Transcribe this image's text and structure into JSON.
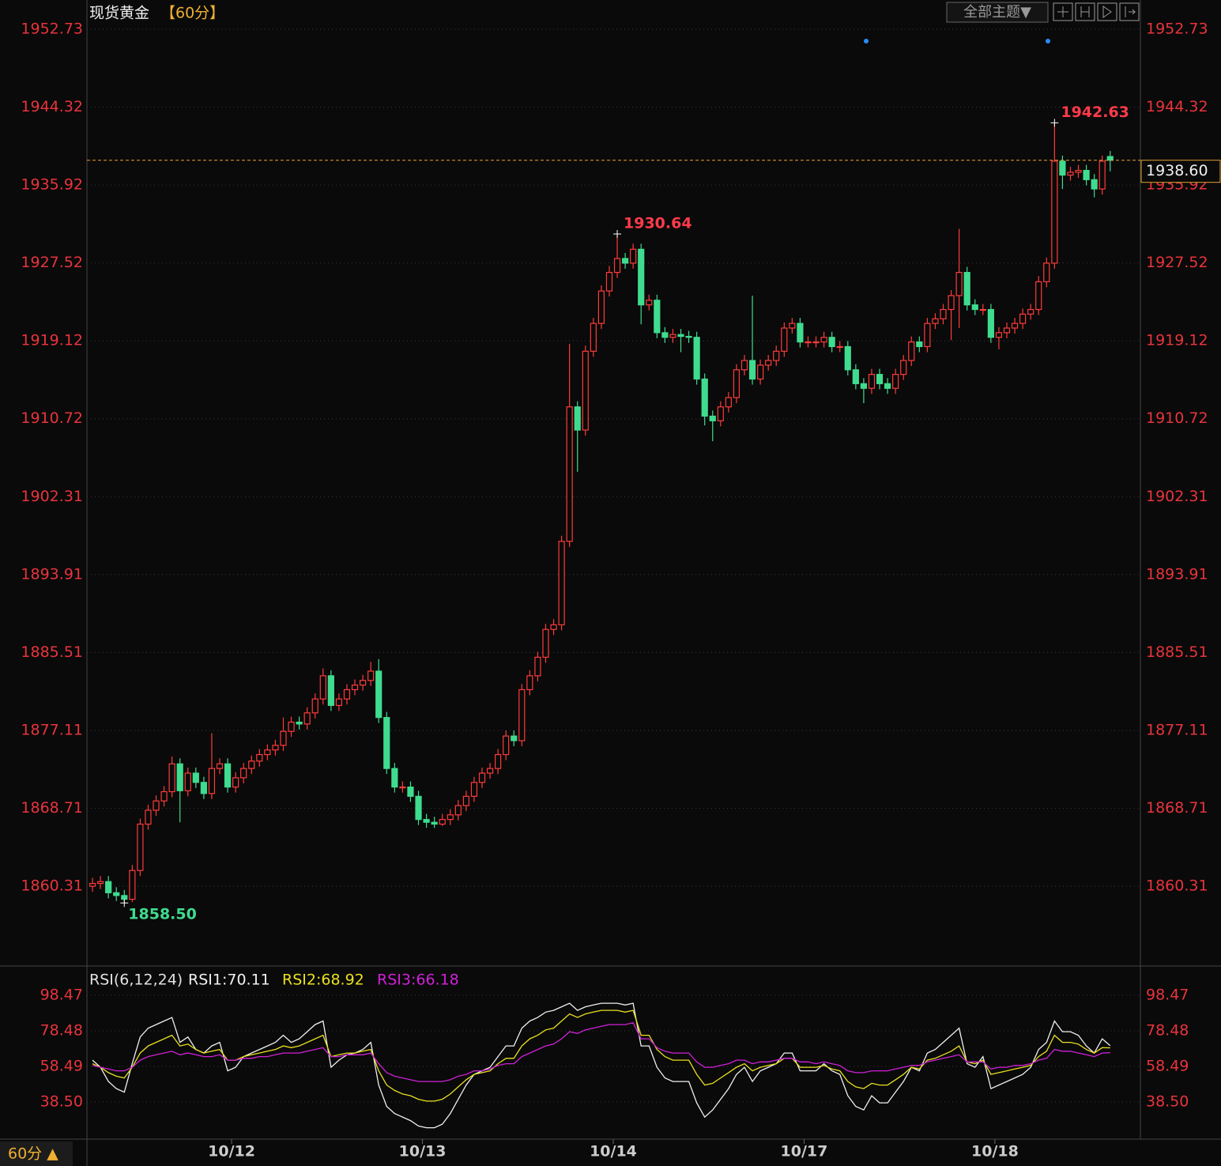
{
  "chart_data": [
    {
      "type": "candlestick",
      "title": "现货黄金",
      "period": "【60分】",
      "up_color": "#ff3b3b",
      "down_color": "#3fdc8f",
      "xlim": [
        -0.7,
        131.8
      ],
      "ylim": [
        1851.87,
        1955.88
      ],
      "yticks": [
        1952.73,
        1944.32,
        1935.92,
        1927.52,
        1919.12,
        1910.72,
        1902.31,
        1893.91,
        1885.51,
        1877.11,
        1868.71,
        1860.31
      ],
      "grid": true,
      "open": [
        1860.3,
        1860.6,
        1860.8,
        1859.6,
        1859.3,
        1858.9,
        1862.0,
        1867.0,
        1868.5,
        1869.5,
        1870.5,
        1873.5,
        1870.6,
        1872.5,
        1871.5,
        1870.3,
        1873.0,
        1873.5,
        1871.0,
        1872.0,
        1873.0,
        1873.8,
        1874.5,
        1875.0,
        1875.5,
        1877.0,
        1878.0,
        1877.8,
        1879.0,
        1880.5,
        1883.0,
        1879.8,
        1880.5,
        1881.5,
        1882.0,
        1882.5,
        1883.5,
        1878.5,
        1873.0,
        1871.0,
        1871.0,
        1870.0,
        1867.5,
        1867.2,
        1867.0,
        1867.5,
        1868.0,
        1869.0,
        1870.0,
        1871.5,
        1872.5,
        1873.0,
        1874.5,
        1876.5,
        1876.0,
        1881.5,
        1883.0,
        1885.0,
        1888.0,
        1888.5,
        1897.5,
        1912.0,
        1909.5,
        1918.0,
        1921.0,
        1924.5,
        1926.5,
        1928.0,
        1927.5,
        1929.0,
        1923.0,
        1923.5,
        1920.0,
        1919.5,
        1919.8,
        1919.6,
        1919.5,
        1915.0,
        1911.0,
        1910.5,
        1912.0,
        1913.0,
        1916.0,
        1917.0,
        1915.0,
        1916.5,
        1917.0,
        1918.0,
        1920.5,
        1921.0,
        1919.0,
        1919.0,
        1919.0,
        1919.5,
        1918.5,
        1918.5,
        1916.0,
        1914.5,
        1914.0,
        1915.5,
        1914.5,
        1914.0,
        1915.5,
        1917.0,
        1919.0,
        1918.5,
        1921.0,
        1921.5,
        1922.5,
        1924.0,
        1926.5,
        1923.0,
        1922.5,
        1922.5,
        1919.5,
        1920.0,
        1920.5,
        1921.0,
        1922.0,
        1922.5,
        1925.5,
        1927.5,
        1938.5,
        1937.0,
        1937.3,
        1937.5,
        1936.5,
        1935.5,
        1939.0
      ],
      "high": [
        1861.2,
        1861.4,
        1861.4,
        1860.2,
        1859.9,
        1862.6,
        1867.6,
        1869.1,
        1870.1,
        1871.1,
        1874.3,
        1874.1,
        1873.1,
        1873.1,
        1872.1,
        1876.8,
        1874.1,
        1874.1,
        1872.6,
        1873.6,
        1874.4,
        1875.1,
        1875.6,
        1876.1,
        1878.5,
        1878.6,
        1878.6,
        1879.6,
        1881.1,
        1883.8,
        1883.6,
        1881.1,
        1882.1,
        1882.6,
        1883.1,
        1884.5,
        1884.8,
        1879.1,
        1873.6,
        1871.6,
        1871.6,
        1870.6,
        1868.1,
        1867.8,
        1868.1,
        1868.6,
        1869.6,
        1870.6,
        1872.1,
        1873.1,
        1873.6,
        1875.1,
        1877.1,
        1877.1,
        1882.1,
        1883.6,
        1885.6,
        1888.6,
        1889.1,
        1898.1,
        1918.8,
        1912.6,
        1918.6,
        1921.6,
        1925.1,
        1927.2,
        1930.64,
        1928.6,
        1929.6,
        1929.6,
        1924.1,
        1924.1,
        1920.6,
        1920.4,
        1920.4,
        1920.2,
        1920.1,
        1915.6,
        1911.6,
        1912.6,
        1913.6,
        1916.6,
        1917.6,
        1924.0,
        1917.1,
        1917.6,
        1918.6,
        1921.1,
        1921.6,
        1921.6,
        1919.6,
        1919.6,
        1920.1,
        1920.1,
        1919.1,
        1919.1,
        1916.6,
        1915.1,
        1916.1,
        1916.1,
        1915.1,
        1916.1,
        1917.6,
        1919.6,
        1919.6,
        1921.6,
        1922.1,
        1923.1,
        1924.6,
        1931.2,
        1927.1,
        1923.6,
        1923.1,
        1923.1,
        1920.6,
        1921.1,
        1921.6,
        1922.6,
        1923.1,
        1926.1,
        1928.1,
        1942.63,
        1939.1,
        1937.9,
        1938.1,
        1938.1,
        1937.1,
        1939.1,
        1939.6
      ],
      "low": [
        1859.7,
        1860.0,
        1859.0,
        1858.7,
        1858.5,
        1858.6,
        1861.4,
        1866.4,
        1867.9,
        1868.9,
        1869.9,
        1867.2,
        1870.0,
        1870.9,
        1869.7,
        1869.7,
        1872.4,
        1870.4,
        1870.4,
        1871.4,
        1872.4,
        1873.2,
        1873.9,
        1874.4,
        1874.9,
        1876.4,
        1877.2,
        1877.2,
        1878.4,
        1879.9,
        1879.2,
        1879.2,
        1879.9,
        1880.9,
        1881.4,
        1881.9,
        1877.9,
        1872.4,
        1870.4,
        1870.4,
        1869.4,
        1866.9,
        1866.6,
        1866.6,
        1866.8,
        1866.9,
        1867.4,
        1868.4,
        1869.4,
        1870.9,
        1871.9,
        1872.4,
        1873.9,
        1875.4,
        1875.4,
        1880.9,
        1882.4,
        1884.4,
        1887.4,
        1887.9,
        1896.9,
        1905.0,
        1908.9,
        1917.4,
        1920.4,
        1923.9,
        1925.9,
        1926.9,
        1926.9,
        1920.9,
        1922.4,
        1919.4,
        1918.9,
        1918.9,
        1917.9,
        1918.9,
        1914.4,
        1910.0,
        1908.3,
        1909.9,
        1911.4,
        1912.4,
        1915.4,
        1914.4,
        1914.4,
        1915.9,
        1916.4,
        1917.4,
        1919.9,
        1918.4,
        1918.4,
        1918.4,
        1918.4,
        1917.9,
        1917.9,
        1915.4,
        1913.9,
        1912.4,
        1913.4,
        1913.9,
        1913.4,
        1913.4,
        1914.9,
        1916.4,
        1917.9,
        1917.9,
        1920.4,
        1920.9,
        1919.2,
        1920.5,
        1922.4,
        1921.9,
        1921.9,
        1918.9,
        1918.2,
        1919.4,
        1919.9,
        1920.4,
        1921.4,
        1921.9,
        1924.9,
        1926.9,
        1935.5,
        1936.4,
        1936.7,
        1935.9,
        1934.6,
        1934.9,
        1937.4
      ],
      "close": [
        1860.6,
        1860.8,
        1859.6,
        1859.3,
        1858.9,
        1862.0,
        1867.0,
        1868.5,
        1869.5,
        1870.5,
        1873.5,
        1870.6,
        1872.5,
        1871.5,
        1870.3,
        1873.0,
        1873.5,
        1871.0,
        1872.0,
        1873.0,
        1873.8,
        1874.5,
        1875.0,
        1875.5,
        1877.0,
        1878.0,
        1877.8,
        1879.0,
        1880.5,
        1883.0,
        1879.8,
        1880.5,
        1881.5,
        1882.0,
        1882.5,
        1883.5,
        1878.5,
        1873.0,
        1871.0,
        1871.0,
        1870.0,
        1867.5,
        1867.2,
        1867.0,
        1867.5,
        1868.0,
        1869.0,
        1870.0,
        1871.5,
        1872.5,
        1873.0,
        1874.5,
        1876.5,
        1876.0,
        1881.5,
        1883.0,
        1885.0,
        1888.0,
        1888.5,
        1897.5,
        1912.0,
        1909.5,
        1918.0,
        1921.0,
        1924.5,
        1926.5,
        1928.0,
        1927.5,
        1929.0,
        1923.0,
        1923.5,
        1920.0,
        1919.5,
        1919.8,
        1919.6,
        1919.5,
        1915.0,
        1911.0,
        1910.5,
        1912.0,
        1913.0,
        1916.0,
        1917.0,
        1915.0,
        1916.5,
        1917.0,
        1918.0,
        1920.5,
        1921.0,
        1919.0,
        1919.0,
        1919.0,
        1919.5,
        1918.5,
        1918.5,
        1916.0,
        1914.5,
        1914.0,
        1915.5,
        1914.5,
        1914.0,
        1915.5,
        1917.0,
        1919.0,
        1918.5,
        1921.0,
        1921.5,
        1922.5,
        1924.0,
        1926.5,
        1923.0,
        1922.5,
        1922.5,
        1919.5,
        1920.0,
        1920.5,
        1921.0,
        1922.0,
        1922.5,
        1925.5,
        1927.5,
        1938.5,
        1937.0,
        1937.3,
        1937.5,
        1936.5,
        1935.5,
        1938.5,
        1938.6
      ],
      "high_labels": [
        "1930.64",
        "1942.63"
      ],
      "low_labels": [
        "1858.50"
      ],
      "last_price": {
        "value": 1938.6,
        "label": "1938.60"
      }
    },
    {
      "type": "line",
      "title": "RSI(6,12,24)",
      "xlim": [
        -0.7,
        131.8
      ],
      "ylim": [
        18.06,
        114.91
      ],
      "yticks": [
        98.47,
        78.48,
        58.49,
        {
          "value": 38.5,
          "label": "38.50"
        }
      ],
      "grid": true,
      "xticks": [
        {
          "value": 17.5,
          "label": "10/12"
        },
        {
          "value": 41.5,
          "label": "10/13"
        },
        {
          "value": 65.5,
          "label": "10/14"
        },
        {
          "value": 89.5,
          "label": "10/17"
        },
        {
          "value": 113.5,
          "label": "10/18"
        }
      ],
      "series": [
        {
          "name": "RSI1:70.11",
          "color": "#f0f0f0",
          "values": [
            62,
            58,
            50,
            46,
            44,
            60,
            75,
            80,
            82,
            84,
            86,
            72,
            75,
            68,
            66,
            70,
            72,
            56,
            58,
            64,
            66,
            68,
            70,
            72,
            76,
            72,
            74,
            78,
            82,
            84,
            58,
            62,
            65,
            66,
            68,
            72,
            48,
            36,
            32,
            30,
            28,
            25,
            24,
            24,
            26,
            32,
            40,
            48,
            54,
            56,
            58,
            64,
            70,
            70,
            80,
            84,
            86,
            89,
            90,
            92,
            94,
            90,
            92,
            93,
            94,
            94,
            94,
            93,
            94,
            70,
            70,
            58,
            52,
            50,
            50,
            50,
            38,
            30,
            34,
            40,
            46,
            54,
            58,
            50,
            56,
            58,
            60,
            66,
            66,
            56,
            56,
            56,
            60,
            56,
            54,
            42,
            36,
            34,
            42,
            38,
            38,
            44,
            50,
            58,
            56,
            66,
            68,
            72,
            76,
            80,
            60,
            58,
            64,
            46,
            48,
            50,
            52,
            54,
            58,
            68,
            72,
            84,
            78,
            78,
            76,
            70,
            66,
            74,
            70.11
          ]
        },
        {
          "name": "RSI2:68.92",
          "color": "#e8e020",
          "values": [
            60,
            58,
            55,
            53,
            52,
            58,
            66,
            70,
            72,
            74,
            76,
            70,
            71,
            68,
            66,
            67,
            68,
            62,
            62,
            64,
            65,
            66,
            67,
            68,
            70,
            69,
            70,
            72,
            74,
            76,
            64,
            65,
            66,
            66,
            67,
            68,
            56,
            48,
            45,
            43,
            42,
            40,
            39,
            39,
            40,
            43,
            47,
            51,
            54,
            55,
            56,
            60,
            63,
            63,
            70,
            74,
            76,
            79,
            80,
            84,
            88,
            86,
            88,
            89,
            90,
            90,
            90,
            89,
            90,
            76,
            76,
            68,
            64,
            62,
            62,
            62,
            54,
            48,
            49,
            52,
            55,
            58,
            60,
            56,
            58,
            59,
            60,
            63,
            63,
            58,
            58,
            58,
            59,
            57,
            56,
            50,
            47,
            46,
            49,
            48,
            48,
            51,
            54,
            58,
            57,
            62,
            63,
            65,
            67,
            70,
            61,
            60,
            62,
            54,
            55,
            56,
            57,
            58,
            59,
            64,
            67,
            76,
            72,
            72,
            71,
            68,
            66,
            69,
            68.92
          ]
        },
        {
          "name": "RSI3:66.18",
          "color": "#d020d8",
          "values": [
            59,
            58,
            57,
            56,
            56,
            58,
            62,
            64,
            65,
            66,
            67,
            65,
            66,
            65,
            64,
            64,
            65,
            62,
            62,
            63,
            63,
            64,
            64,
            65,
            66,
            66,
            66,
            67,
            68,
            69,
            64,
            64,
            65,
            65,
            65,
            66,
            60,
            55,
            53,
            52,
            51,
            50,
            50,
            50,
            50,
            51,
            53,
            54,
            56,
            56,
            57,
            59,
            60,
            60,
            64,
            66,
            68,
            70,
            71,
            74,
            78,
            77,
            79,
            80,
            81,
            82,
            82,
            82,
            83,
            74,
            74,
            69,
            67,
            66,
            66,
            66,
            61,
            58,
            58,
            59,
            60,
            62,
            62,
            60,
            61,
            61,
            62,
            63,
            63,
            61,
            61,
            60,
            61,
            60,
            59,
            56,
            55,
            55,
            56,
            56,
            56,
            57,
            58,
            59,
            59,
            61,
            62,
            63,
            64,
            65,
            61,
            61,
            61,
            57,
            58,
            58,
            59,
            59,
            60,
            62,
            63,
            68,
            67,
            67,
            66,
            65,
            64,
            66,
            66.18
          ]
        }
      ]
    }
  ],
  "toolbar": {
    "theme_button": "全部主题▼"
  },
  "footer": {
    "period_button": "60分 ▲"
  }
}
